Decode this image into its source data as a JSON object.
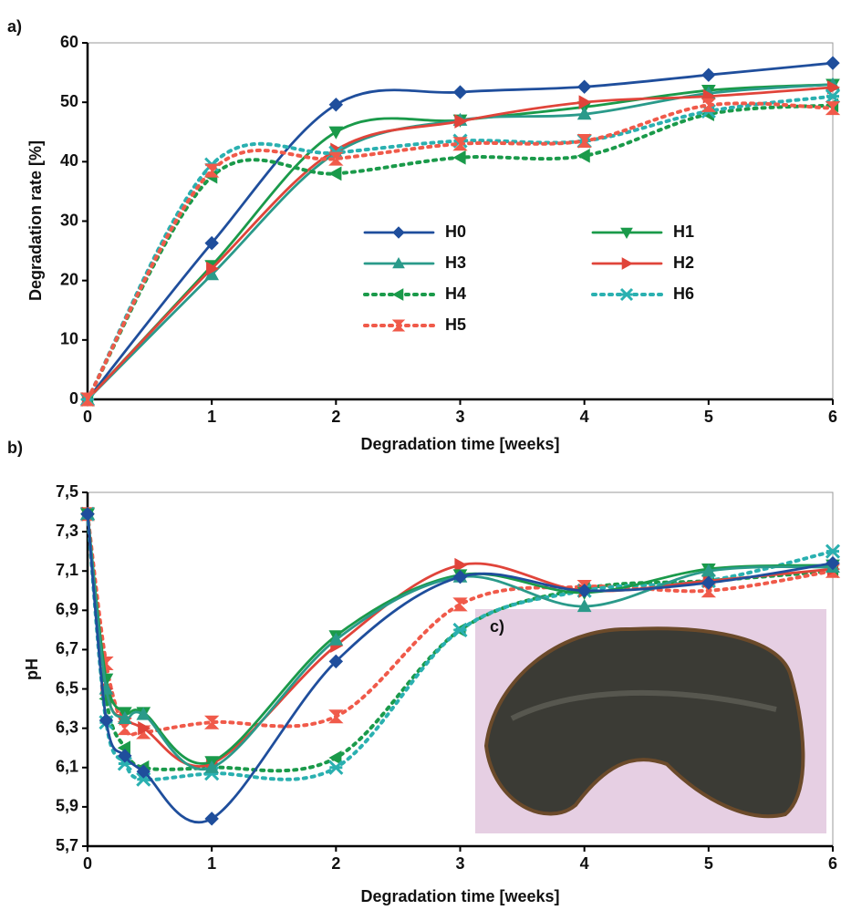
{
  "chart_data": [
    {
      "type": "line",
      "label": "a)",
      "xlabel": "Degradation time [weeks]",
      "ylabel": "Degradation rate [%]",
      "x": [
        0,
        1,
        2,
        3,
        4,
        5,
        6
      ],
      "xlim": [
        0,
        6
      ],
      "xticks": [
        0,
        1,
        2,
        3,
        4,
        5,
        6
      ],
      "ylim": [
        0,
        60
      ],
      "yticks": [
        0,
        10,
        20,
        30,
        40,
        50,
        60
      ],
      "legend": true,
      "series": [
        {
          "name": "H0",
          "color": "#1f4e9c",
          "marker": "diamond",
          "dotted": false,
          "values": [
            0,
            26.3,
            49.6,
            51.7,
            52.6,
            54.6,
            56.6
          ]
        },
        {
          "name": "H1",
          "color": "#1a9a4a",
          "marker": "triangle-down",
          "dotted": false,
          "values": [
            0,
            22.5,
            45,
            47,
            49.2,
            52,
            53
          ]
        },
        {
          "name": "H3",
          "color": "#2a9a8a",
          "marker": "triangle-up",
          "dotted": false,
          "values": [
            0,
            21,
            41.5,
            47,
            48,
            51.5,
            53
          ]
        },
        {
          "name": "H2",
          "color": "#e0443a",
          "marker": "triangle-right",
          "dotted": false,
          "values": [
            0,
            22,
            42,
            46.8,
            50,
            51,
            52.5
          ]
        },
        {
          "name": "H4",
          "color": "#1a9a4a",
          "marker": "triangle-left",
          "dotted": true,
          "values": [
            0,
            37.5,
            38,
            40.7,
            41,
            48,
            49.5
          ]
        },
        {
          "name": "H6",
          "color": "#2ab0b0",
          "marker": "x",
          "dotted": true,
          "values": [
            0,
            39.5,
            41.5,
            43.5,
            43.5,
            48.5,
            51
          ]
        },
        {
          "name": "H5",
          "color": "#f05a4a",
          "marker": "hourglass",
          "dotted": true,
          "values": [
            0,
            38.5,
            40.5,
            43,
            43.5,
            49.5,
            49
          ]
        }
      ]
    },
    {
      "type": "line",
      "label": "b)",
      "inset_label": "c)",
      "xlabel": "Degradation time [weeks]",
      "ylabel": "pH",
      "x": [
        0,
        0.15,
        0.3,
        0.45,
        1,
        2,
        3,
        4,
        5,
        6
      ],
      "xlim": [
        0,
        6
      ],
      "xticks": [
        0,
        1,
        2,
        3,
        4,
        5,
        6
      ],
      "ylim": [
        5.7,
        7.5
      ],
      "yticks": [
        {
          "value": 5.7,
          "label": "5,7"
        },
        {
          "value": 5.9,
          "label": "5,9"
        },
        {
          "value": 6.1,
          "label": "6,1"
        },
        {
          "value": 6.3,
          "label": "6,3"
        },
        {
          "value": 6.5,
          "label": "6,5"
        },
        {
          "value": 6.7,
          "label": "6,7"
        },
        {
          "value": 6.9,
          "label": "6,9"
        },
        {
          "value": 7.1,
          "label": "7,1"
        },
        {
          "value": 7.3,
          "label": "7,3"
        },
        {
          "value": 7.5,
          "label": "7,5"
        }
      ],
      "legend": false,
      "series": [
        {
          "name": "H4",
          "color": "#1a9a4a",
          "marker": "triangle-left",
          "dotted": true,
          "values": [
            7.39,
            6.45,
            6.2,
            6.1,
            6.1,
            6.15,
            6.8,
            7.01,
            7.05,
            7.1
          ]
        },
        {
          "name": "H5",
          "color": "#f05a4a",
          "marker": "hourglass",
          "dotted": true,
          "values": [
            7.39,
            6.63,
            6.3,
            6.28,
            6.33,
            6.36,
            6.93,
            7.02,
            7.0,
            7.1
          ]
        },
        {
          "name": "H6",
          "color": "#2ab0b0",
          "marker": "x",
          "dotted": true,
          "values": [
            7.39,
            6.33,
            6.12,
            6.04,
            6.07,
            6.1,
            6.8,
            7.0,
            7.05,
            7.2
          ]
        },
        {
          "name": "H2",
          "color": "#e0443a",
          "marker": "triangle-right",
          "dotted": false,
          "values": [
            7.39,
            6.5,
            6.35,
            6.3,
            6.12,
            6.72,
            7.13,
            7.0,
            7.05,
            7.11
          ]
        },
        {
          "name": "H1",
          "color": "#1a9a4a",
          "marker": "triangle-down",
          "dotted": false,
          "values": [
            7.39,
            6.55,
            6.38,
            6.38,
            6.13,
            6.77,
            7.08,
            6.99,
            7.11,
            7.13
          ]
        },
        {
          "name": "H3",
          "color": "#2a9a8a",
          "marker": "triangle-up",
          "dotted": false,
          "values": [
            7.39,
            6.5,
            6.35,
            6.37,
            6.1,
            6.75,
            7.07,
            6.92,
            7.1,
            7.12
          ]
        },
        {
          "name": "H0",
          "color": "#1f4e9c",
          "marker": "diamond",
          "dotted": false,
          "values": [
            7.39,
            6.34,
            6.16,
            6.08,
            5.84,
            6.64,
            7.07,
            7.0,
            7.04,
            7.14
          ]
        }
      ]
    }
  ]
}
